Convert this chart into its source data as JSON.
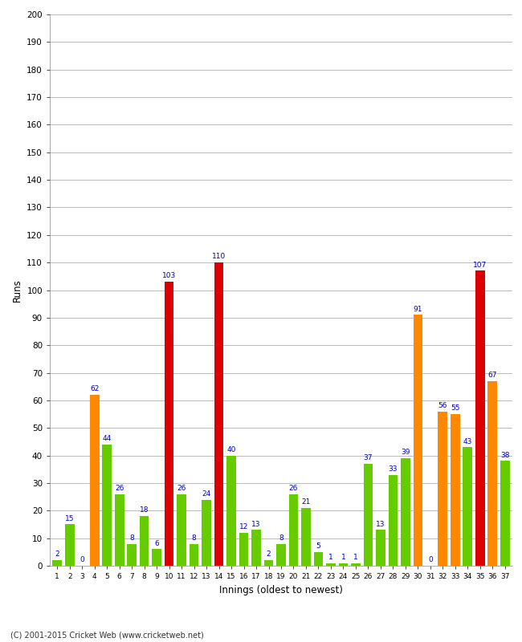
{
  "innings": [
    1,
    2,
    3,
    4,
    5,
    6,
    7,
    8,
    9,
    10,
    11,
    12,
    13,
    14,
    15,
    16,
    17,
    18,
    19,
    20,
    21,
    22,
    23,
    24,
    25,
    26,
    27,
    28,
    29,
    30,
    31,
    32,
    33,
    34,
    35,
    36,
    37
  ],
  "values": [
    2,
    15,
    0,
    62,
    44,
    26,
    8,
    18,
    6,
    103,
    26,
    8,
    24,
    110,
    40,
    12,
    13,
    2,
    8,
    26,
    21,
    5,
    1,
    1,
    1,
    37,
    13,
    33,
    39,
    91,
    0,
    56,
    55,
    43,
    107,
    67,
    38
  ],
  "colors": [
    "#66cc00",
    "#66cc00",
    "#66cc00",
    "#ff8800",
    "#66cc00",
    "#66cc00",
    "#66cc00",
    "#66cc00",
    "#66cc00",
    "#dd0000",
    "#66cc00",
    "#66cc00",
    "#66cc00",
    "#dd0000",
    "#66cc00",
    "#66cc00",
    "#66cc00",
    "#66cc00",
    "#66cc00",
    "#66cc00",
    "#66cc00",
    "#66cc00",
    "#66cc00",
    "#66cc00",
    "#66cc00",
    "#66cc00",
    "#66cc00",
    "#66cc00",
    "#66cc00",
    "#ff8800",
    "#66cc00",
    "#ff8800",
    "#ff8800",
    "#66cc00",
    "#dd0000",
    "#ff8800",
    "#66cc00"
  ],
  "xlabel": "Innings (oldest to newest)",
  "ylabel": "Runs",
  "ylim": [
    0,
    200
  ],
  "yticks": [
    0,
    10,
    20,
    30,
    40,
    50,
    60,
    70,
    80,
    90,
    100,
    110,
    120,
    130,
    140,
    150,
    160,
    170,
    180,
    190,
    200
  ],
  "footer": "(C) 2001-2015 Cricket Web (www.cricketweb.net)",
  "label_color": "#0000cc",
  "label_fontsize": 6.5,
  "bar_width": 0.75,
  "background_color": "#ffffff",
  "grid_color": "#bbbbbb",
  "figsize": [
    6.5,
    8.0
  ],
  "dpi": 100
}
